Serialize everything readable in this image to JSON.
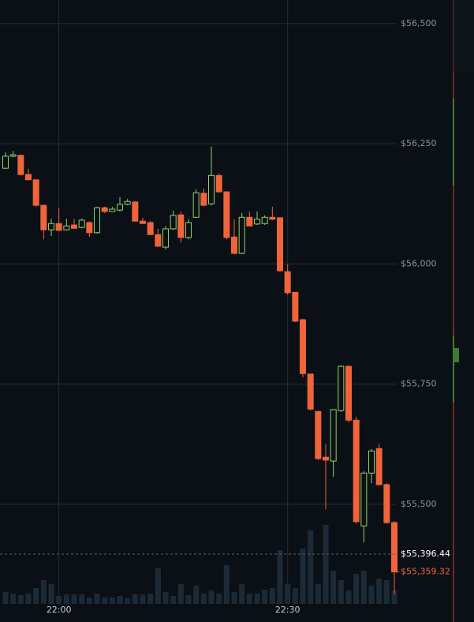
{
  "chart_data": {
    "type": "candlestick",
    "categories": [
      null,
      null,
      null,
      null,
      null,
      null,
      null,
      "22:00",
      null,
      null,
      null,
      null,
      null,
      null,
      null,
      null,
      null,
      null,
      null,
      null,
      null,
      null,
      null,
      null,
      null,
      null,
      null,
      null,
      null,
      null,
      null,
      null,
      null,
      null,
      null,
      null,
      null,
      "22:30",
      null,
      null,
      null,
      null,
      null,
      null,
      null,
      null,
      null,
      null,
      null,
      null,
      null,
      null
    ],
    "open": [
      56199,
      56224,
      56226,
      56186,
      56175,
      56122,
      56071,
      56084,
      56071,
      56081,
      56076,
      56086,
      56065,
      56117,
      56109,
      56112,
      56124,
      56129,
      56089,
      56086,
      56061,
      56035,
      56073,
      56102,
      56055,
      56097,
      56147,
      56125,
      56184,
      56150,
      56056,
      56022,
      56097,
      56083,
      56084,
      56097,
      56096,
      55984,
      55941,
      55884,
      55771,
      55693,
      55598,
      55590,
      55695,
      55787,
      55675,
      55455,
      55565,
      55616,
      55541,
      55462
    ],
    "high": [
      56232,
      56235,
      56227,
      56198,
      56175,
      56122,
      56094,
      56116,
      56094,
      56094,
      56094,
      56089,
      56119,
      56119,
      56119,
      56139,
      56135,
      56129,
      56096,
      56089,
      56073,
      56079,
      56111,
      56109,
      56093,
      56155,
      56157,
      56244,
      56188,
      56150,
      56093,
      56106,
      56109,
      56109,
      56101,
      56119,
      56097,
      55999,
      55941,
      55886,
      55771,
      55695,
      55625,
      55698,
      55789,
      55789,
      55682,
      55569,
      55615,
      55626,
      55544,
      55465
    ],
    "low": [
      56198,
      56222,
      56184,
      56175,
      56119,
      56051,
      56058,
      56068,
      56070,
      56073,
      56074,
      56056,
      56063,
      56106,
      56109,
      56109,
      56122,
      56088,
      56083,
      56060,
      56035,
      56030,
      56071,
      56045,
      56051,
      56096,
      56120,
      56122,
      56148,
      56051,
      56020,
      56020,
      56078,
      56081,
      56081,
      56091,
      55982,
      55936,
      55879,
      55764,
      55695,
      55592,
      55490,
      55557,
      55692,
      55670,
      55460,
      55421,
      55544,
      55539,
      55460,
      55313
    ],
    "close": [
      56224,
      56227,
      56186,
      56175,
      56122,
      56071,
      56084,
      56070,
      56079,
      56074,
      56091,
      56065,
      56117,
      56109,
      56114,
      56124,
      56130,
      56089,
      56084,
      56061,
      56037,
      56073,
      56101,
      56055,
      56086,
      56148,
      56122,
      56184,
      56150,
      56055,
      56022,
      56097,
      56079,
      56093,
      56097,
      56093,
      55986,
      55940,
      55881,
      55772,
      55698,
      55595,
      55592,
      55697,
      55787,
      55675,
      55464,
      55565,
      55611,
      55541,
      55462,
      55359.32
    ],
    "volume": [
      15,
      13,
      11,
      13,
      20,
      30,
      25,
      10,
      12,
      12,
      12,
      8,
      13,
      8,
      8,
      10,
      7,
      12,
      12,
      13,
      45,
      15,
      10,
      25,
      11,
      23,
      13,
      17,
      13,
      49,
      15,
      25,
      13,
      13,
      18,
      20,
      68,
      25,
      20,
      70,
      93,
      25,
      100,
      42,
      30,
      17,
      38,
      42,
      23,
      32,
      30,
      17
    ],
    "vlim": [
      0,
      100
    ],
    "up_color": "#8fd16a",
    "down_color": "#f0643a",
    "volume_color": "#1c2a38",
    "ylim": [
      55293,
      56549
    ],
    "yticks": [
      {
        "value": 55500,
        "label": "$55,500"
      },
      {
        "value": 55750,
        "label": "$55,750"
      },
      {
        "value": 56000,
        "label": "$56,000"
      },
      {
        "value": 56250,
        "label": "$56,250"
      },
      {
        "value": 56500,
        "label": "$56,500"
      }
    ],
    "price_lines": [
      {
        "value": 55396.44,
        "label": "$55,396.44",
        "color": "#ffffff"
      },
      {
        "value": 55359.32,
        "label": "$55,359.32",
        "color": "#f0643a"
      }
    ],
    "grid": true
  }
}
